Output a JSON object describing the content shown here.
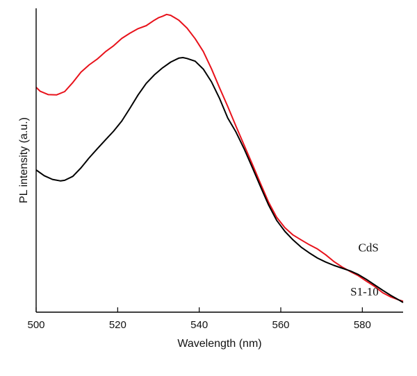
{
  "chart_data": {
    "type": "line",
    "title": "",
    "xlabel": "Wavelength (nm)",
    "ylabel": "PL intensity (a.u.)",
    "xlim": [
      500,
      590
    ],
    "ylim": [
      0,
      1
    ],
    "x_ticks": [
      500,
      520,
      540,
      560,
      580
    ],
    "y_ticks": [],
    "grid": false,
    "legend": "none",
    "series": [
      {
        "name": "CdS",
        "color": "#e8121b",
        "x": [
          500,
          501,
          503,
          505,
          507,
          509,
          511,
          513,
          515,
          517,
          519,
          521,
          523,
          525,
          527,
          529,
          530,
          531,
          532,
          533,
          535,
          537,
          539,
          541,
          543,
          545,
          547,
          549,
          551,
          553,
          555,
          557,
          559,
          561,
          563,
          565,
          567,
          569,
          571,
          573,
          575,
          577,
          579,
          581,
          583,
          585,
          587,
          589,
          590
        ],
        "y": [
          0.74,
          0.727,
          0.716,
          0.715,
          0.726,
          0.756,
          0.79,
          0.814,
          0.833,
          0.857,
          0.877,
          0.901,
          0.918,
          0.933,
          0.943,
          0.961,
          0.969,
          0.974,
          0.98,
          0.977,
          0.961,
          0.935,
          0.9,
          0.858,
          0.801,
          0.738,
          0.677,
          0.612,
          0.55,
          0.488,
          0.424,
          0.362,
          0.312,
          0.278,
          0.254,
          0.238,
          0.222,
          0.208,
          0.189,
          0.167,
          0.149,
          0.134,
          0.12,
          0.102,
          0.085,
          0.064,
          0.05,
          0.04,
          0.036
        ]
      },
      {
        "name": "S1-10",
        "color": "#000000",
        "x": [
          500,
          502,
          504,
          506,
          507,
          509,
          511,
          513,
          515,
          517,
          519,
          521,
          523,
          525,
          527,
          529,
          531,
          533,
          535,
          536,
          537,
          539,
          541,
          543,
          545,
          547,
          549,
          551,
          553,
          555,
          557,
          559,
          561,
          563,
          565,
          567,
          569,
          571,
          573,
          575,
          577,
          579,
          581,
          583,
          585,
          587,
          589,
          590
        ],
        "y": [
          0.468,
          0.449,
          0.437,
          0.432,
          0.434,
          0.447,
          0.475,
          0.508,
          0.538,
          0.567,
          0.596,
          0.629,
          0.671,
          0.715,
          0.753,
          0.781,
          0.804,
          0.823,
          0.836,
          0.838,
          0.835,
          0.826,
          0.8,
          0.758,
          0.703,
          0.639,
          0.593,
          0.538,
          0.477,
          0.414,
          0.353,
          0.302,
          0.266,
          0.238,
          0.214,
          0.195,
          0.178,
          0.165,
          0.154,
          0.145,
          0.136,
          0.124,
          0.108,
          0.09,
          0.072,
          0.055,
          0.04,
          0.032
        ]
      }
    ],
    "annotations": [
      {
        "text": "CdS",
        "x": 584,
        "y": 0.2,
        "series": "CdS"
      },
      {
        "text": "S1-10",
        "x": 584,
        "y": 0.055,
        "series": "S1-10"
      }
    ]
  }
}
